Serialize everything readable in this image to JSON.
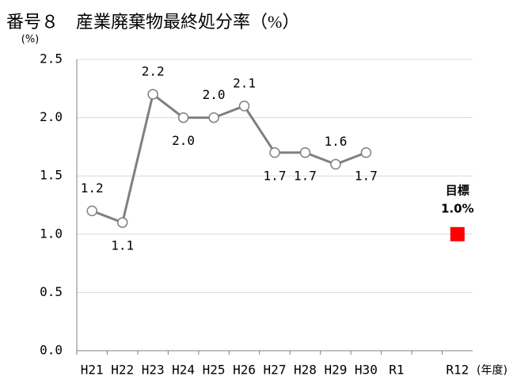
{
  "chart_data": {
    "type": "line",
    "title": "番号８　産業廃棄物最終処分率（%）",
    "y_label": "(%)",
    "x_label": "(年度)",
    "categories": [
      "H21",
      "H22",
      "H23",
      "H24",
      "H25",
      "H26",
      "H27",
      "H28",
      "H29",
      "H30",
      "R1",
      null,
      "R12"
    ],
    "series": [
      {
        "color": "#808080",
        "values": [
          1.2,
          1.1,
          2.2,
          2.0,
          2.0,
          2.1,
          1.7,
          1.7,
          1.6,
          1.7,
          null,
          null,
          null
        ],
        "value_labels": [
          "1.2",
          "1.1",
          "2.2",
          "2.0",
          "2.0",
          "2.1",
          "1.7",
          "1.7",
          "1.6",
          "1.7",
          null,
          null,
          null
        ]
      },
      {
        "name": "目標",
        "color": "#ff0000",
        "values": [
          null,
          null,
          null,
          null,
          null,
          null,
          null,
          null,
          null,
          null,
          null,
          null,
          1.0
        ],
        "value_labels": [
          null,
          null,
          null,
          null,
          null,
          null,
          null,
          null,
          null,
          null,
          null,
          null,
          "1.0%"
        ]
      }
    ],
    "ylim": [
      0,
      2.5
    ],
    "yticks": [
      {
        "value": 0,
        "label": "0.0"
      },
      0.5,
      {
        "value": 1,
        "label": "1.0"
      },
      1.5,
      {
        "value": 2,
        "label": "2.0"
      },
      2.5
    ],
    "grid": true
  }
}
